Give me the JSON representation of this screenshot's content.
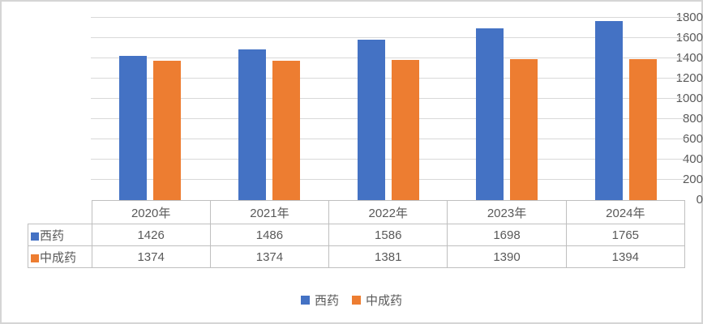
{
  "chart_data": {
    "type": "bar",
    "title": "",
    "categories": [
      "2020年",
      "2021年",
      "2022年",
      "2023年",
      "2024年"
    ],
    "series": [
      {
        "name": "西药",
        "color": "#4472C4",
        "values": [
          1426,
          1486,
          1586,
          1698,
          1765
        ]
      },
      {
        "name": "中成药",
        "color": "#ED7D31",
        "values": [
          1374,
          1374,
          1381,
          1390,
          1394
        ]
      }
    ],
    "xlabel": "",
    "ylabel": "",
    "ylim": [
      0,
      1800
    ],
    "ytick_step": 200,
    "ytick_labels": [
      "0",
      "200",
      "400",
      "600",
      "800",
      "1000",
      "1200",
      "1400",
      "1600",
      "1800"
    ],
    "grid": true,
    "legend_position": "bottom",
    "data_table_shown": true
  },
  "colors": {
    "grid": "#d9d9d9",
    "table_border": "#bfbfbf",
    "text": "#595959",
    "frame": "#d5d5d5",
    "background": "#ffffff"
  }
}
